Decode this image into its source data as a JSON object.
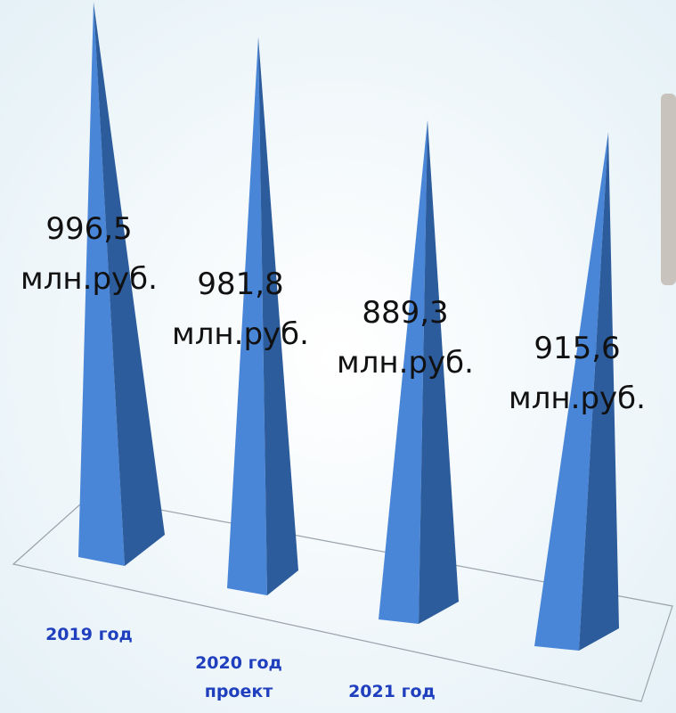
{
  "chart_data": {
    "type": "pyramid",
    "categories": [
      "2019 год",
      "2020 год\nпроект",
      "2021 год",
      null
    ],
    "values": [
      996.5,
      981.8,
      889.3,
      915.6
    ],
    "value_labels": [
      "996,5\nмлн.руб.",
      "981,8\nмлн.руб.",
      "889,3\nмлн.руб.",
      "915,6\nмлн.руб."
    ],
    "color": "#4a86d8"
  }
}
